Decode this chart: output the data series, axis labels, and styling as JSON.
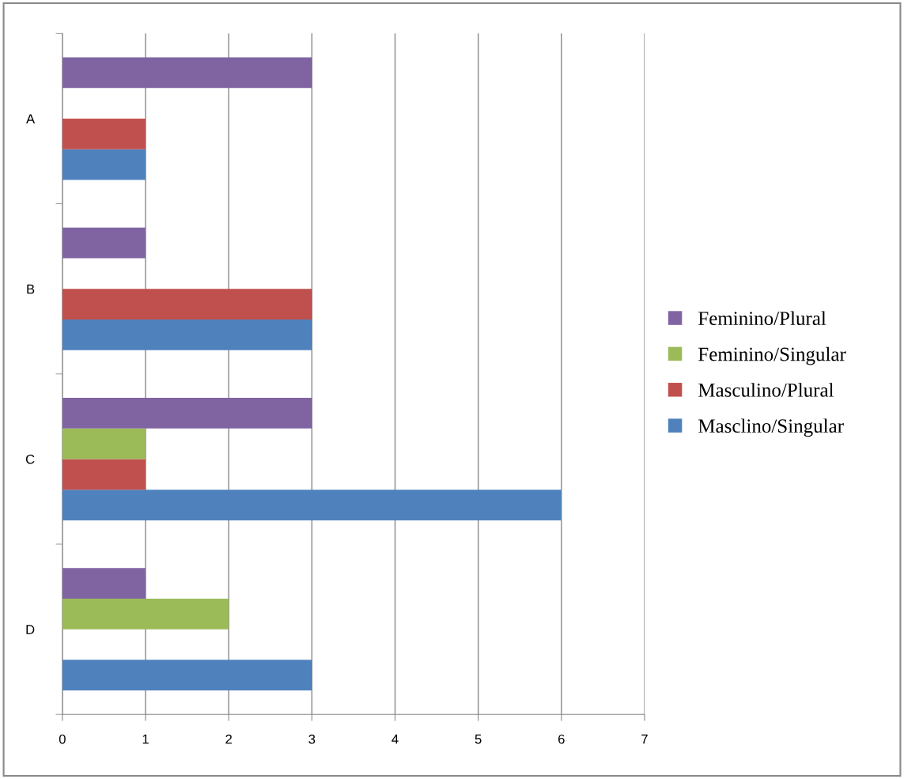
{
  "chart_data": {
    "type": "bar",
    "orientation": "horizontal",
    "categories": [
      "A",
      "B",
      "C",
      "D"
    ],
    "series": [
      {
        "name": "Masclino/Singular",
        "color": "#4f81bd",
        "values": [
          1,
          3,
          6,
          3
        ]
      },
      {
        "name": "Masculino/Plural",
        "color": "#c0504d",
        "values": [
          1,
          3,
          1,
          0
        ]
      },
      {
        "name": "Feminino/Singular",
        "color": "#9bbb59",
        "values": [
          0,
          0,
          1,
          2
        ]
      },
      {
        "name": "Feminino/Plural",
        "color": "#8064a2",
        "values": [
          3,
          1,
          3,
          1
        ]
      }
    ],
    "xlim": [
      0,
      7
    ],
    "xticks": [
      0,
      1,
      2,
      3,
      4,
      5,
      6,
      7
    ],
    "grid": "x",
    "legend": "right"
  }
}
